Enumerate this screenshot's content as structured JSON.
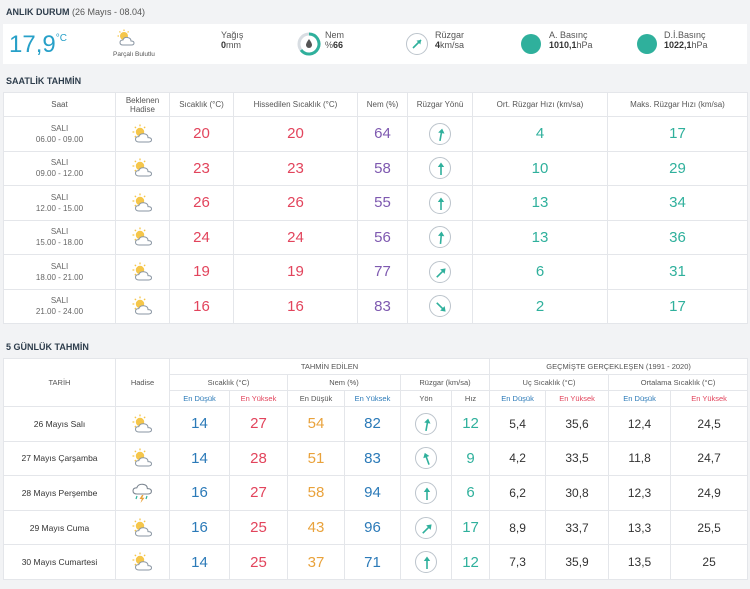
{
  "current": {
    "section_title": "ANLIK DURUM",
    "section_sub": "(26 Mayıs - 08.04)",
    "temp": "17,9",
    "temp_unit": "°C",
    "hadise_label": "Parçalı Bulutlu",
    "yagis_label": "Yağış",
    "yagis_value": "0",
    "yagis_unit": "mm",
    "nem_label": "Nem",
    "nem_value": "66",
    "nem_prefix": "%",
    "ruzgar_label": "Rüzgar",
    "ruzgar_value": "4",
    "ruzgar_unit": "km/sa",
    "abasinc_label": "A. Basınç",
    "abasinc_value": "1010,1",
    "abasinc_unit": "hPa",
    "dibasinc_label": "D.İ.Basınç",
    "dibasinc_value": "1022,1",
    "dibasinc_unit": "hPa",
    "colors": {
      "accent": "#27a0c8",
      "teal": "#2fb09c"
    }
  },
  "hourly": {
    "section_title": "SAATLİK TAHMİN",
    "headers": {
      "saat": "Saat",
      "hadise_1": "Beklenen",
      "hadise_2": "Hadise",
      "sicaklik": "Sıcaklık (°C)",
      "hissedilen": "Hissedilen Sıcaklık (°C)",
      "nem": "Nem (%)",
      "yon": "Rüzgar Yönü",
      "ort": "Ort. Rüzgar Hızı (km/sa)",
      "maks": "Maks. Rüzgar Hızı (km/sa)"
    },
    "rows": [
      {
        "day": "SALI",
        "range": "06.00 - 09.00",
        "icon": "partly-cloudy-icon",
        "temp": "20",
        "feel": "20",
        "hum": "64",
        "wind_dir": 190,
        "avg": "4",
        "max": "17"
      },
      {
        "day": "SALI",
        "range": "09.00 - 12.00",
        "icon": "partly-cloudy-icon",
        "temp": "23",
        "feel": "23",
        "hum": "58",
        "wind_dir": 180,
        "avg": "10",
        "max": "29"
      },
      {
        "day": "SALI",
        "range": "12.00 - 15.00",
        "icon": "partly-cloudy-icon",
        "temp": "26",
        "feel": "26",
        "hum": "55",
        "wind_dir": 180,
        "avg": "13",
        "max": "34"
      },
      {
        "day": "SALI",
        "range": "15.00 - 18.00",
        "icon": "partly-cloudy-icon",
        "temp": "24",
        "feel": "24",
        "hum": "56",
        "wind_dir": 185,
        "avg": "13",
        "max": "36"
      },
      {
        "day": "SALI",
        "range": "18.00 - 21.00",
        "icon": "partly-cloudy-icon",
        "temp": "19",
        "feel": "19",
        "hum": "77",
        "wind_dir": 225,
        "avg": "6",
        "max": "31"
      },
      {
        "day": "SALI",
        "range": "21.00 - 24.00",
        "icon": "partly-cloudy-icon",
        "temp": "16",
        "feel": "16",
        "hum": "83",
        "wind_dir": 315,
        "avg": "2",
        "max": "17"
      }
    ]
  },
  "daily": {
    "section_title": "5 GÜNLÜK TAHMİN",
    "headers": {
      "tarih": "TARİH",
      "hadise": "Hadise",
      "tahmin": "TAHMİN EDİLEN",
      "gecmis": "GEÇMİŞTE GERÇEKLEŞEN (1991 - 2020)",
      "sicaklik": "Sıcaklık (°C)",
      "nem": "Nem (%)",
      "ruzgar": "Rüzgar (km/sa)",
      "uc": "Uç Sıcaklık (°C)",
      "ortalama": "Ortalama Sıcaklık (°C)",
      "en_dusuk": "En Düşük",
      "en_yuksek": "En Yüksek",
      "yon": "Yön",
      "hiz": "Hız"
    },
    "rows": [
      {
        "date": "26 Mayıs Salı",
        "icon": "partly-cloudy-icon",
        "tmin": "14",
        "tmax": "27",
        "hmin": "54",
        "hmax": "82",
        "wind_dir": 190,
        "speed": "12",
        "umin": "5,4",
        "umax": "35,6",
        "omin": "12,4",
        "omax": "24,5"
      },
      {
        "date": "27 Mayıs Çarşamba",
        "icon": "partly-cloudy-icon",
        "tmin": "14",
        "tmax": "28",
        "hmin": "51",
        "hmax": "83",
        "wind_dir": 160,
        "speed": "9",
        "umin": "4,2",
        "umax": "33,5",
        "omin": "11,8",
        "omax": "24,7"
      },
      {
        "date": "28 Mayıs Perşembe",
        "icon": "thunderstorm-icon",
        "tmin": "16",
        "tmax": "27",
        "hmin": "58",
        "hmax": "94",
        "wind_dir": 180,
        "speed": "6",
        "umin": "6,2",
        "umax": "30,8",
        "omin": "12,3",
        "omax": "24,9"
      },
      {
        "date": "29 Mayıs Cuma",
        "icon": "partly-cloudy-icon",
        "tmin": "16",
        "tmax": "25",
        "hmin": "43",
        "hmax": "96",
        "wind_dir": 225,
        "speed": "17",
        "umin": "8,9",
        "umax": "33,7",
        "omin": "13,3",
        "omax": "25,5"
      },
      {
        "date": "30 Mayıs Cumartesi",
        "icon": "partly-cloudy-icon",
        "tmin": "14",
        "tmax": "25",
        "hmin": "37",
        "hmax": "71",
        "wind_dir": 180,
        "speed": "12",
        "umin": "7,3",
        "umax": "35,9",
        "omin": "13,5",
        "omax": "25"
      }
    ]
  }
}
